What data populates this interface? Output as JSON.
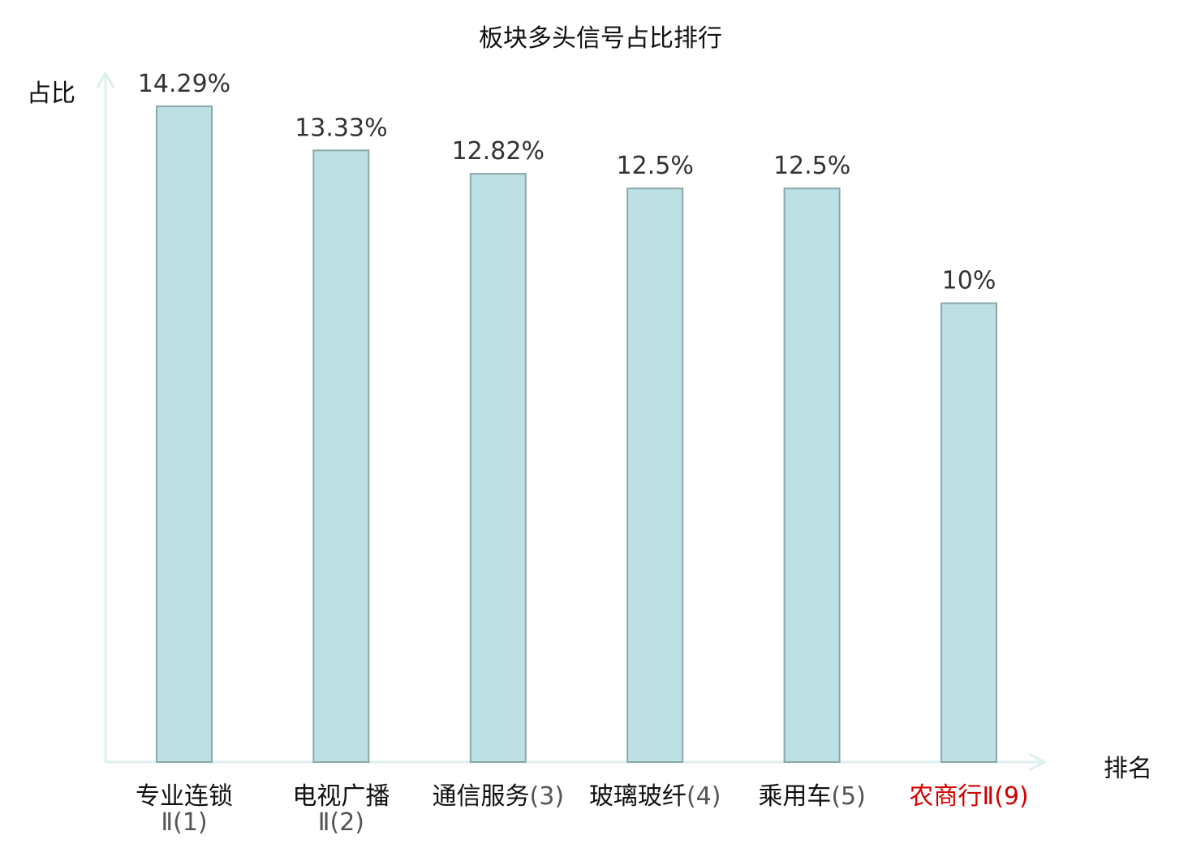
{
  "chart_data": {
    "type": "bar",
    "title": "板块多头信号占比排行",
    "ylabel": "占比",
    "xlabel": "排名",
    "categories": [
      "专业连锁Ⅱ(1)",
      "电视广播Ⅱ(2)",
      "通信服务(3)",
      "玻璃玻纤(4)",
      "乘用车(5)",
      "农商行Ⅱ(9)"
    ],
    "category_parts": [
      {
        "name": "专业连锁",
        "rank": "Ⅱ(1)",
        "highlight": false
      },
      {
        "name": "电视广播",
        "rank": "Ⅱ(2)",
        "highlight": false
      },
      {
        "name": "通信服务",
        "rank": "(3)",
        "highlight": false
      },
      {
        "name": "玻璃玻纤",
        "rank": "(4)",
        "highlight": false
      },
      {
        "name": "乘用车",
        "rank": "(5)",
        "highlight": false
      },
      {
        "name": "农商行",
        "rank": "Ⅱ(9)",
        "highlight": true
      }
    ],
    "values": [
      14.29,
      13.33,
      12.82,
      12.5,
      12.5,
      10
    ],
    "value_labels": [
      "14.29%",
      "13.33%",
      "12.82%",
      "12.5%",
      "12.5%",
      "10%"
    ],
    "ylim": [
      0,
      14.29
    ],
    "grid": false,
    "colors": {
      "bar_fill": "#bce0e3",
      "bar_stroke": "#8aa8aa",
      "axis": "#ddf0ee",
      "highlight_text": "#d40000"
    }
  }
}
